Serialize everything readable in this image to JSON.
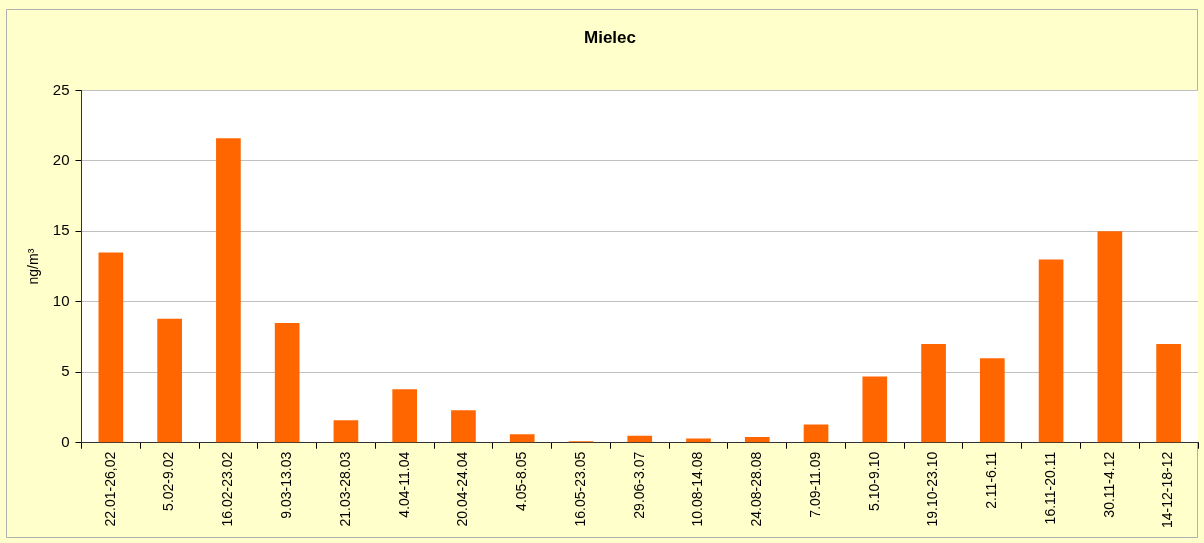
{
  "chart_data": {
    "type": "bar",
    "title": "Mielec",
    "ylabel": "ng/m³",
    "categories": [
      "22.01-26,02",
      "5.02-9.02",
      "16.02-23.02",
      "9.03-13.03",
      "21.03-28.03",
      "4.04-11.04",
      "20.04-24.04",
      "4.05-8.05",
      "16.05-23.05",
      "29.06-3.07",
      "10.08-14.08",
      "24.08-28.08",
      "7.09-11.09",
      "5.10-9.10",
      "19.10-23.10",
      "2.11-6.11",
      "16.11-20.11",
      "30.11-4.12",
      "14-12-18-12"
    ],
    "values": [
      13.5,
      8.8,
      21.6,
      8.5,
      1.6,
      3.8,
      2.3,
      0.6,
      0.1,
      0.5,
      0.3,
      0.4,
      1.3,
      4.7,
      7.0,
      6.0,
      13.0,
      15.0,
      7.0
    ],
    "color": "#ff6600",
    "ylim": [
      0,
      25
    ],
    "yticks": [
      0,
      5,
      10,
      15,
      20,
      25
    ],
    "grid": "y",
    "legend": false
  }
}
